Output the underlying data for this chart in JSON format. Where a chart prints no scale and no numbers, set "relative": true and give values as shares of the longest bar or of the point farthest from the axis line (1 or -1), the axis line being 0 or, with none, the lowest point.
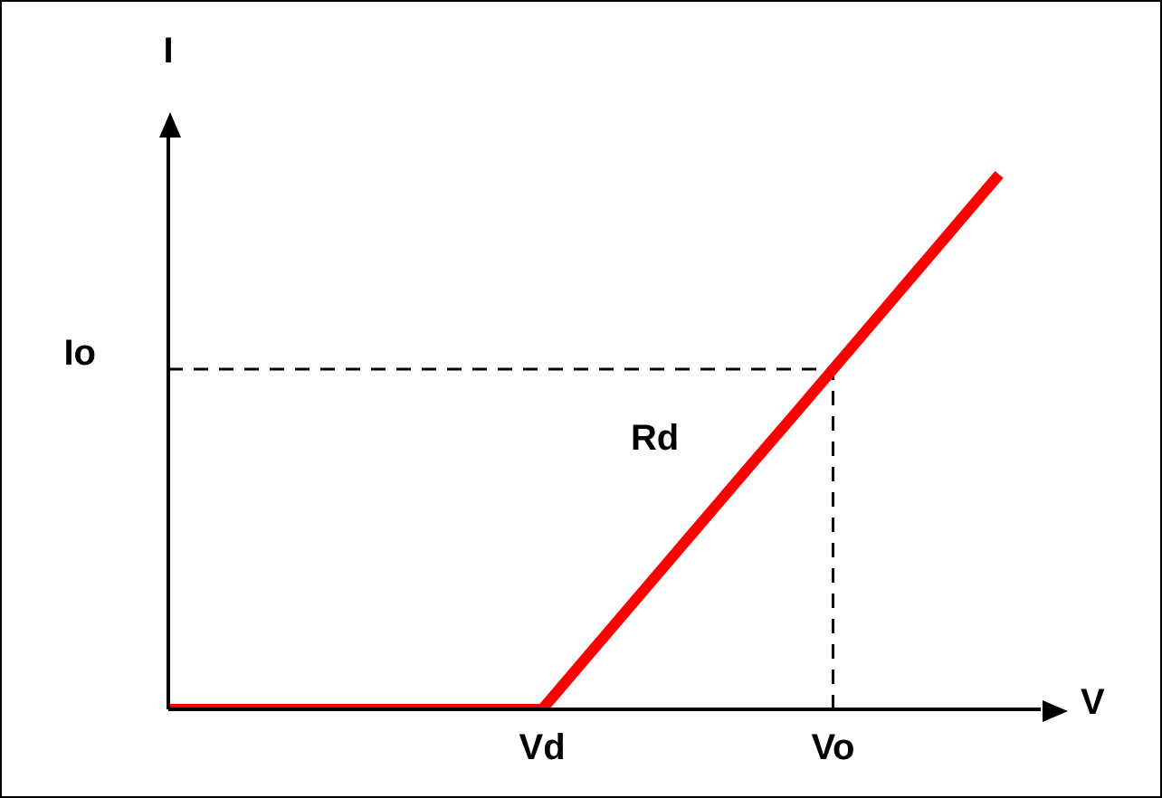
{
  "chart_data": {
    "type": "line",
    "relative": true,
    "xlabel": "V",
    "ylabel": "I",
    "categories": [
      null,
      null,
      null,
      null,
      null,
      null,
      null,
      null,
      null,
      "Vd",
      null,
      null,
      null,
      null,
      null,
      null,
      "Vo",
      null,
      null,
      null,
      null,
      null
    ],
    "series": [
      {
        "color": "#ff0000",
        "values": [
          0,
          0,
          0,
          0,
          0,
          0,
          0,
          0,
          0,
          0,
          0.091,
          0.182,
          0.273,
          0.364,
          0.455,
          0.545,
          0.636,
          0.727,
          0.818,
          0.909,
          1,
          null
        ]
      }
    ],
    "ref_lines": [
      {
        "axis": "y",
        "value": 0.636,
        "label": "Io",
        "color": "#000000",
        "line_style": "dashed"
      },
      {
        "axis": "x",
        "value": "Vo",
        "color": "#000000",
        "line_style": "dashed"
      }
    ],
    "annotations": [
      "Rd"
    ]
  }
}
